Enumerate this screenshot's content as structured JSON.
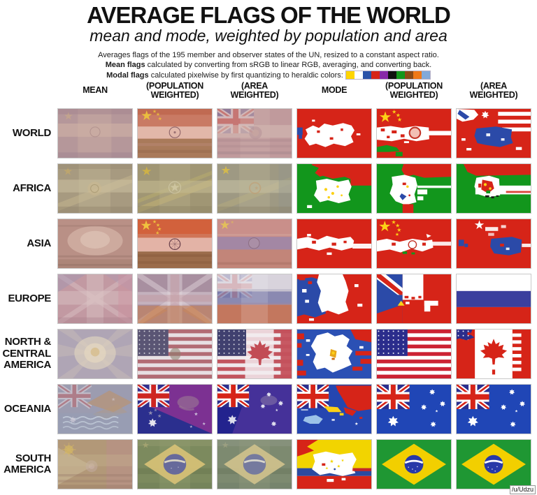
{
  "title": "AVERAGE FLAGS OF THE WORLD",
  "subtitle": "mean and mode, weighted by population and area",
  "description": {
    "line1": "Averages flags of the 195 member and observer states of the UN, resized to a constant aspect ratio.",
    "line2_bold": "Mean flags",
    "line2_rest": " calculated by converting from sRGB to linear RGB, averaging, and converting back.",
    "line3_bold": "Modal flags",
    "line3_rest": " calculated pixelwise by first quantizing to heraldic colors:",
    "heraldic_colors": [
      "#ffd500",
      "#ffffff",
      "#2b52a8",
      "#d62418",
      "#8729a8",
      "#111111",
      "#12961c",
      "#8b4a16",
      "#f07818",
      "#82a9d9"
    ]
  },
  "grid": {
    "columns": [
      {
        "line1": "MEAN",
        "line2": ""
      },
      {
        "line1": "(POPULATION",
        "line2": "WEIGHTED)"
      },
      {
        "line1": "(AREA",
        "line2": "WEIGHTED)"
      },
      {
        "line1": "MODE",
        "line2": ""
      },
      {
        "line1": "(POPULATION",
        "line2": "WEIGHTED)"
      },
      {
        "line1": "(AREA",
        "line2": "WEIGHTED)"
      }
    ],
    "rows": [
      "WORLD",
      "AFRICA",
      "ASIA",
      "EUROPE",
      "NORTH &\nCENTRAL\nAMERICA",
      "OCEANIA",
      "SOUTH\nAMERICA"
    ]
  },
  "watermark": "/u/Udzu",
  "chart_data": {
    "type": "table",
    "title": "AVERAGE FLAGS OF THE WORLD",
    "subtitle": "mean and mode, weighted by population and area",
    "columns": [
      "MEAN",
      "MEAN (POPULATION WEIGHTED)",
      "MEAN (AREA WEIGHTED)",
      "MODE",
      "MODE (POPULATION WEIGHTED)",
      "MODE (AREA WEIGHTED)"
    ],
    "rows": [
      "WORLD",
      "AFRICA",
      "ASIA",
      "EUROPE",
      "NORTH & CENTRAL AMERICA",
      "OCEANIA",
      "SOUTH AMERICA"
    ],
    "cells": [
      [
        "muted mauve blur with faint lighter cross",
        "salmon-red blur with China stars and faint Ashoka chakra",
        "muted rose blur with ghost Union Jack canton",
        "red field with large ragged white patch and blue fleck at left",
        "red field with yellow China stars, white mid band, red chakra emblem and green patches",
        "red field with white US-style stripes at right, blue central patch and white/blue canton fragments"
      ],
      [
        "muted olive-tan blur with lighter cross and diagonal band",
        "olive-tan blur with yellow star and pale diagonal band",
        "olive-tan blur with yellow star and faint crescent emblem",
        "green field, red top band, ragged white central patch with yellow flecks",
        "green field, red top-right band, large white patch with red/blue/yellow flecks",
        "green field, red top band, white mid band with red-yellow emblem and black flecks"
      ],
      [
        "dusty rose blur with lighter center",
        "orange-red, pale pink and brown bands with China stars and chakra ring",
        "dusty pink blur with yellow star and bluish mid band",
        "red field with ragged white mid band",
        "red field with yellow China stars and ragged white mid band",
        "red field with white star, blue central-right patch and blue flecks"
      ],
      [
        "muted pink blur with ghost Union Jack",
        "mauve blur with ghost Union Jack and orange lower tint",
        "ghost Russian tricolor: pale top, blue-gray middle, salmon bottom",
        "red field with blue left region and large white central patch",
        "blue left column with Union Jack fragment, white top block, red right and bottom, small yellow triangle",
        "Russian tricolor: white, blue and red horizontal bands"
      ],
      [
        "pale lavender blur with radiant light center",
        "ghost US flag: starred canton and muted red-white stripes with faint crest",
        "ghost US stripes and canton with red maple leaf on white center and red right band",
        "blue field with red fragments and big white patch with small gold emblem",
        "US stars-and-stripes flag",
        "Canadian-style flag: red bands, white center with red maple leaf, blue starred fragment top-left, white stripe notches right"
      ],
      [
        "gray-blue blur with ghost Union Jack canton, orange streak and wavy lines",
        "purple and navy diagonal field with Union Jack canton, ghost bird of paradise and gray stars",
        "ghost Australian flag with purple diagonal and bird-of-paradise silhouette",
        "blue field with Union Jack canton, red Papua shape, yellow patch and pale-blue island shape",
        "Australian flag: Union Jack canton, Commonwealth star and Southern Cross",
        "Australian flag: Union Jack canton, Commonwealth star and Southern Cross"
      ],
      [
        "tan blur with ghost sun, light diagonal wedge and faint crest",
        "olive blur with ghost Brazilian yellow diamond and blue globe",
        "gray-olive blur with ghost Brazilian diamond and globe",
        "yellow, blue and red bands with red corner patch and white blob with yellow stars",
        "Brazilian flag: green field, yellow diamond, blue globe with white banner",
        "Brazilian flag: green field, yellow diamond, blue globe with white banner"
      ]
    ]
  }
}
